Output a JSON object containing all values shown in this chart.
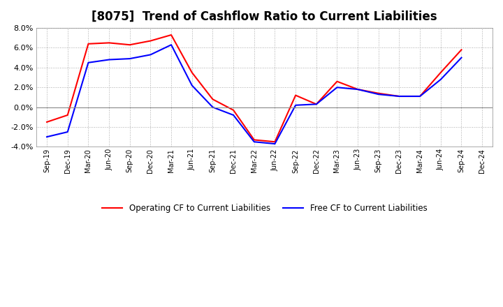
{
  "title": "[8075]  Trend of Cashflow Ratio to Current Liabilities",
  "x_labels": [
    "Sep-19",
    "Dec-19",
    "Mar-20",
    "Jun-20",
    "Sep-20",
    "Dec-20",
    "Mar-21",
    "Jun-21",
    "Sep-21",
    "Dec-21",
    "Mar-22",
    "Jun-22",
    "Sep-22",
    "Dec-22",
    "Mar-23",
    "Jun-23",
    "Sep-23",
    "Dec-23",
    "Mar-24",
    "Jun-24",
    "Sep-24",
    "Dec-24"
  ],
  "operating_cf": [
    -1.5,
    -0.8,
    6.4,
    6.5,
    6.3,
    6.7,
    7.3,
    3.5,
    0.8,
    -0.3,
    -3.3,
    -3.5,
    1.2,
    0.3,
    2.6,
    1.8,
    1.4,
    1.1,
    1.1,
    3.5,
    5.8,
    null
  ],
  "free_cf": [
    -3.0,
    -2.5,
    4.5,
    4.8,
    4.9,
    5.3,
    6.3,
    2.2,
    0.0,
    -0.8,
    -3.5,
    -3.7,
    0.2,
    0.3,
    2.0,
    1.8,
    1.3,
    1.1,
    1.1,
    2.8,
    5.0,
    null
  ],
  "ylim": [
    -4.0,
    8.0
  ],
  "yticks": [
    -4.0,
    -2.0,
    0.0,
    2.0,
    4.0,
    6.0,
    8.0
  ],
  "operating_color": "#FF0000",
  "free_color": "#0000FF",
  "background_color": "#FFFFFF",
  "grid_color": "#AAAAAA",
  "title_fontsize": 12,
  "legend_labels": [
    "Operating CF to Current Liabilities",
    "Free CF to Current Liabilities"
  ]
}
